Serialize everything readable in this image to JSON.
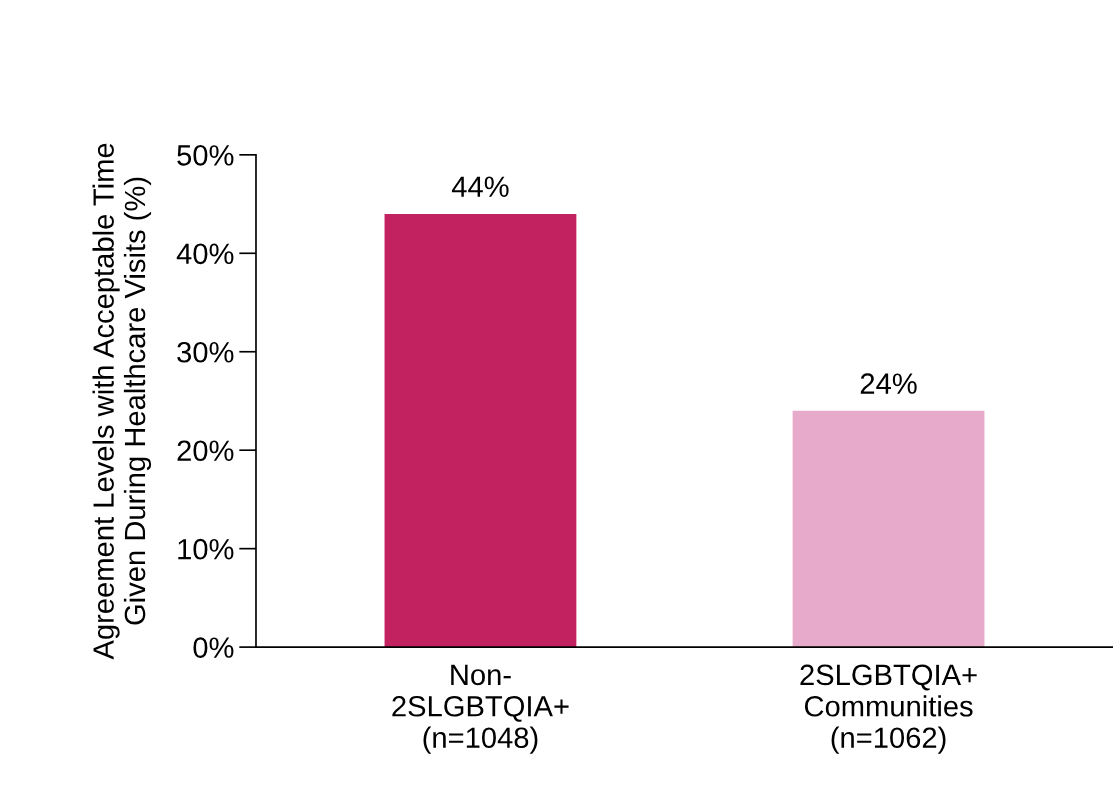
{
  "chart_data": {
    "type": "bar",
    "ylabel": "Agreement Levels with Acceptable Time\nGiven During Healthcare Visits (%)",
    "categories": [
      "Non-\n2SLGBTQIA+\n(n=1048)",
      "2SLGBTQIA+\nCommunities\n(n=1062)"
    ],
    "values": [
      44,
      24
    ],
    "colors": [
      "#c2225f",
      "#e8aacb"
    ],
    "ylim": [
      0,
      50
    ],
    "yticks": [
      {
        "value": 0,
        "label": "0%"
      },
      {
        "value": 10,
        "label": "10%"
      },
      {
        "value": 20,
        "label": "20%"
      },
      {
        "value": 30,
        "label": "30%"
      },
      {
        "value": 40,
        "label": "40%"
      },
      {
        "value": 50,
        "label": "50%"
      }
    ],
    "value_labels": [
      "44%",
      "24%"
    ],
    "grid": false,
    "legend": false
  }
}
